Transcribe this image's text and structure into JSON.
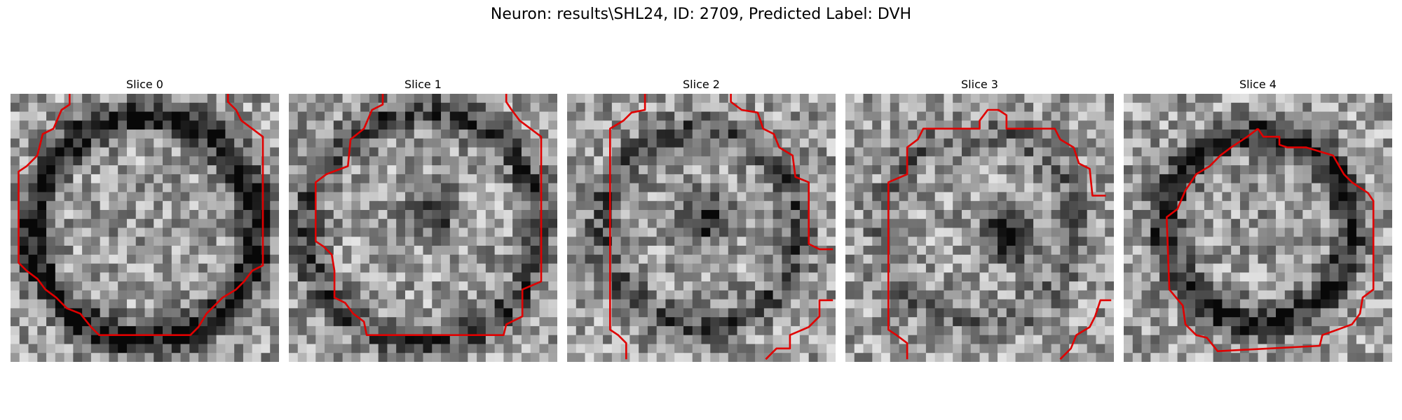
{
  "figure": {
    "title": "Neuron: results\\SHL24, ID: 2709, Predicted Label: DVH"
  },
  "panels": [
    {
      "title": "Slice 0"
    },
    {
      "title": "Slice 1"
    },
    {
      "title": "Slice 2"
    },
    {
      "title": "Slice 3"
    },
    {
      "title": "Slice 4"
    }
  ],
  "contour_color": "#e00000"
}
